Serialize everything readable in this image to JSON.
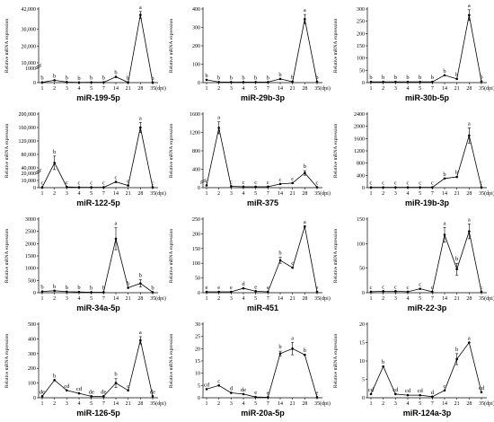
{
  "common": {
    "categories": [
      "1",
      "2",
      "3",
      "4",
      "5",
      "7",
      "14",
      "21",
      "28",
      "35"
    ],
    "x_unit": "(dpi)",
    "ylabel": "Relative mRNA expression"
  },
  "chart_data": [
    {
      "type": "line",
      "title": "miR-199-5p",
      "xlabel": "(dpi)",
      "ylabel": "Relative mRNA expression",
      "categories": [
        "1",
        "2",
        "3",
        "4",
        "5",
        "7",
        "14",
        "21",
        "28",
        "35"
      ],
      "y_break": true,
      "y_ticks_lower": [
        "0",
        "1000"
      ],
      "y_ticks_upper": [
        "10,000",
        "20,000",
        "30,000",
        "42,000"
      ],
      "ylim_lower": [
        0,
        1000
      ],
      "ylim_upper": [
        10000,
        42000
      ],
      "values": [
        20,
        160,
        40,
        10,
        20,
        20,
        400,
        10,
        38500,
        10
      ],
      "errors": [
        0,
        0,
        0,
        0,
        0,
        0,
        0,
        0,
        2000,
        0
      ],
      "letters": [
        "b",
        "b",
        "b",
        "b",
        "b",
        "b",
        "b",
        "b",
        "a",
        "b"
      ]
    },
    {
      "type": "line",
      "title": "miR-29b-3p",
      "xlabel": "(dpi)",
      "ylabel": "Relative mRNA expression",
      "categories": [
        "1",
        "2",
        "3",
        "4",
        "5",
        "7",
        "14",
        "21",
        "28",
        "35"
      ],
      "y_ticks": [
        "0",
        "100",
        "200",
        "300",
        "400"
      ],
      "ylim": [
        0,
        400
      ],
      "values": [
        15,
        3,
        3,
        3,
        3,
        3,
        20,
        5,
        345,
        5
      ],
      "errors": [
        0,
        0,
        0,
        0,
        0,
        0,
        0,
        0,
        25,
        0
      ],
      "letters": [
        "b",
        "b",
        "b",
        "b",
        "b",
        "b",
        "b",
        "b",
        "a",
        "b"
      ]
    },
    {
      "type": "line",
      "title": "miR-30b-5p",
      "xlabel": "(dpi)",
      "ylabel": "Relative mRNA expression",
      "categories": [
        "1",
        "2",
        "3",
        "4",
        "5",
        "7",
        "14",
        "21",
        "28",
        "35"
      ],
      "y_ticks": [
        "0",
        "50",
        "100",
        "150",
        "200",
        "250",
        "300"
      ],
      "ylim": [
        0,
        300
      ],
      "values": [
        3,
        3,
        3,
        3,
        3,
        3,
        30,
        15,
        275,
        5
      ],
      "errors": [
        0,
        0,
        0,
        0,
        0,
        0,
        0,
        0,
        22,
        0
      ],
      "letters": [
        "b",
        "b",
        "b",
        "b",
        "b",
        "b",
        "b",
        "b",
        "a",
        "b"
      ]
    },
    {
      "type": "line",
      "title": "miR-122-5p",
      "xlabel": "(dpi)",
      "ylabel": "Relative mRNA expression",
      "categories": [
        "1",
        "2",
        "3",
        "4",
        "5",
        "7",
        "14",
        "21",
        "28",
        "35"
      ],
      "y_break": true,
      "y_ticks_lower": [
        "0",
        "10,000",
        "20,000"
      ],
      "y_ticks_upper": [
        "40,000",
        "80,000",
        "120,000",
        "160,000",
        "200,000"
      ],
      "ylim_lower": [
        0,
        20000
      ],
      "ylim_upper": [
        40000,
        200000
      ],
      "values": [
        500,
        55000,
        1000,
        500,
        500,
        500,
        8000,
        3000,
        160000,
        500
      ],
      "errors": [
        0,
        20000,
        0,
        0,
        0,
        0,
        0,
        0,
        15000,
        0
      ],
      "letters": [
        "c",
        "b",
        "c",
        "c",
        "c",
        "c",
        "c",
        "c",
        "a",
        "c"
      ]
    },
    {
      "type": "line",
      "title": "miR-375",
      "xlabel": "(dpi)",
      "ylabel": "Relative mRNA expression",
      "categories": [
        "1",
        "2",
        "3",
        "4",
        "5",
        "7",
        "14",
        "21",
        "28",
        "35"
      ],
      "y_break": true,
      "y_ticks": [
        "0",
        "400",
        "800",
        "1200",
        "1600"
      ],
      "ylim": [
        0,
        1600
      ],
      "values": [
        50,
        1300,
        30,
        20,
        20,
        20,
        80,
        100,
        320,
        10
      ],
      "errors": [
        0,
        130,
        0,
        0,
        0,
        0,
        0,
        0,
        50,
        0
      ],
      "letters": [
        "c",
        "a",
        "c",
        "c",
        "c",
        "c",
        "c",
        "c",
        "b",
        "c"
      ]
    },
    {
      "type": "line",
      "title": "miR-19b-3p",
      "xlabel": "(dpi)",
      "ylabel": "Relative mRNA expression",
      "categories": [
        "1",
        "2",
        "3",
        "4",
        "5",
        "7",
        "14",
        "21",
        "28",
        "35"
      ],
      "y_ticks": [
        "0",
        "400",
        "800",
        "1200",
        "1600",
        "2000",
        "2400"
      ],
      "ylim": [
        0,
        2400
      ],
      "values": [
        10,
        10,
        10,
        10,
        10,
        10,
        300,
        350,
        1700,
        10
      ],
      "errors": [
        0,
        0,
        0,
        0,
        0,
        0,
        0,
        0,
        250,
        0
      ],
      "letters": [
        "c",
        "c",
        "c",
        "c",
        "c",
        "c",
        "b",
        "b",
        "a",
        "c"
      ]
    },
    {
      "type": "line",
      "title": "miR-34a-5p",
      "xlabel": "(dpi)",
      "ylabel": "Relative mRNA expression",
      "categories": [
        "1",
        "2",
        "3",
        "4",
        "5",
        "7",
        "14",
        "21",
        "28",
        "35"
      ],
      "y_ticks": [
        "0",
        "500",
        "1000",
        "1500",
        "2000",
        "2500",
        "3000"
      ],
      "ylim": [
        0,
        3000
      ],
      "values": [
        50,
        80,
        40,
        30,
        20,
        20,
        2200,
        200,
        380,
        20
      ],
      "errors": [
        0,
        0,
        0,
        0,
        0,
        0,
        450,
        0,
        150,
        0
      ],
      "letters": [
        "b",
        "b",
        "b",
        "b",
        "b",
        "b",
        "a",
        "b",
        "b",
        "b"
      ]
    },
    {
      "type": "line",
      "title": "miR-451",
      "xlabel": "(dpi)",
      "ylabel": "Relative mRNA expression",
      "categories": [
        "1",
        "2",
        "3",
        "4",
        "5",
        "7",
        "14",
        "21",
        "28",
        "35"
      ],
      "y_ticks": [
        "0",
        "50",
        "100",
        "150",
        "200",
        "250"
      ],
      "ylim": [
        0,
        250
      ],
      "values": [
        3,
        3,
        3,
        15,
        5,
        3,
        110,
        85,
        225,
        3
      ],
      "errors": [
        0,
        0,
        0,
        0,
        0,
        0,
        10,
        0,
        0,
        0
      ],
      "letters": [
        "e",
        "e",
        "e",
        "d",
        "e",
        "e",
        "b",
        "c",
        "a",
        "e"
      ]
    },
    {
      "type": "line",
      "title": "miR-22-3p",
      "xlabel": "(dpi)",
      "ylabel": "Relative mRNA expression",
      "categories": [
        "1",
        "2",
        "3",
        "4",
        "5",
        "7",
        "14",
        "21",
        "28",
        "35"
      ],
      "y_ticks": [
        "0",
        "50",
        "100",
        "150"
      ],
      "ylim": [
        0,
        150
      ],
      "values": [
        2,
        3,
        3,
        2,
        8,
        2,
        118,
        48,
        125,
        2
      ],
      "errors": [
        0,
        0,
        0,
        0,
        0,
        0,
        15,
        12,
        15,
        0
      ],
      "letters": [
        "c",
        "c",
        "c",
        "c",
        "c",
        "c",
        "a",
        "b",
        "a",
        "c"
      ]
    },
    {
      "type": "line",
      "title": "miR-126-5p",
      "xlabel": "(dpi)",
      "ylabel": "Relative mRNA expression",
      "categories": [
        "1",
        "2",
        "3",
        "4",
        "5",
        "7",
        "14",
        "21",
        "28",
        "35"
      ],
      "y_ticks": [
        "0",
        "100",
        "200",
        "300",
        "400",
        "500"
      ],
      "ylim": [
        0,
        500
      ],
      "values": [
        10,
        120,
        50,
        30,
        10,
        10,
        100,
        50,
        390,
        10
      ],
      "errors": [
        0,
        0,
        0,
        0,
        0,
        0,
        30,
        0,
        25,
        0
      ],
      "letters": [
        "de",
        "b",
        "cd",
        "cd",
        "de",
        "de",
        "b",
        "c",
        "a",
        "de"
      ]
    },
    {
      "type": "line",
      "title": "miR-20a-5p",
      "xlabel": "(dpi)",
      "ylabel": "Relative mRNA expression",
      "categories": [
        "1",
        "2",
        "3",
        "4",
        "5",
        "7",
        "14",
        "21",
        "28",
        "35"
      ],
      "y_ticks": [
        "0",
        "5",
        "10",
        "15",
        "20",
        "25",
        "30"
      ],
      "ylim": [
        0,
        30
      ],
      "values": [
        3.5,
        5,
        2,
        1.5,
        0.3,
        0.2,
        18,
        20,
        17.5,
        0.2
      ],
      "errors": [
        0,
        0,
        0,
        0,
        0,
        0,
        1,
        2.5,
        0,
        0
      ],
      "letters": [
        "cd",
        "c",
        "d",
        "de",
        "e",
        "e",
        "b",
        "a",
        "b",
        "e"
      ]
    },
    {
      "type": "line",
      "title": "miR-124a-3p",
      "xlabel": "(dpi)",
      "ylabel": "Relative mRNA expression",
      "categories": [
        "1",
        "2",
        "3",
        "4",
        "5",
        "7",
        "14",
        "21",
        "28",
        "35"
      ],
      "y_ticks": [
        "0",
        "5",
        "10",
        "15",
        "20"
      ],
      "ylim": [
        0,
        20
      ],
      "values": [
        1,
        8.5,
        1,
        0.7,
        0.7,
        0.3,
        2,
        10.5,
        15,
        1.5
      ],
      "errors": [
        0,
        0,
        0,
        0,
        0,
        0,
        0,
        1.5,
        0,
        0
      ],
      "letters": [
        "cd",
        "b",
        "cd",
        "cd",
        "cd",
        "d",
        "c",
        "b",
        "a",
        "cd"
      ]
    }
  ]
}
